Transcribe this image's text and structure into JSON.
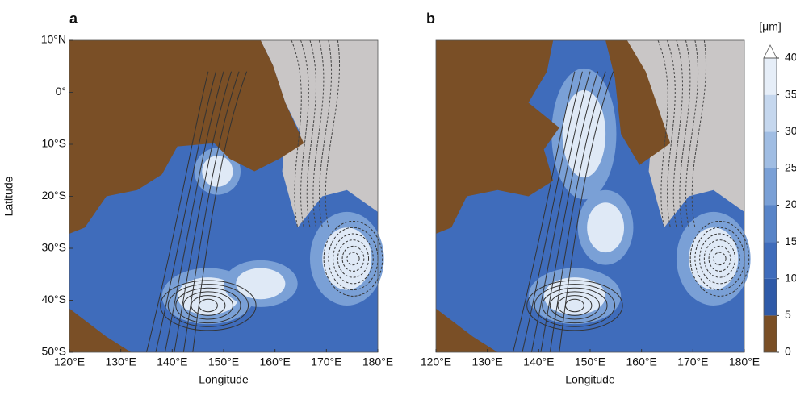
{
  "chart_data": [
    {
      "type": "contour",
      "title": "a",
      "xlabel": "Longitude",
      "ylabel": "Latitude",
      "xlim": [
        120,
        180
      ],
      "ylim": [
        -50,
        10
      ],
      "xticks": [
        {
          "value": 120,
          "label": "120°E"
        },
        {
          "value": 130,
          "label": "130°E"
        },
        {
          "value": 140,
          "label": "140°E"
        },
        {
          "value": 150,
          "label": "150°E"
        },
        {
          "value": 160,
          "label": "160°E"
        },
        {
          "value": 170,
          "label": "170°E"
        },
        {
          "value": 180,
          "label": "180°E"
        }
      ],
      "yticks": [
        {
          "value": 10,
          "label": "10°N"
        },
        {
          "value": 0,
          "label": "0°"
        },
        {
          "value": -10,
          "label": "10°S"
        },
        {
          "value": -20,
          "label": "20°S"
        },
        {
          "value": -30,
          "label": "30°S"
        },
        {
          "value": -40,
          "label": "40°S"
        },
        {
          "value": -50,
          "label": "50°S"
        }
      ]
    },
    {
      "type": "contour",
      "title": "b",
      "xlabel": "Longitude",
      "xlim": [
        120,
        180
      ],
      "ylim": [
        -50,
        10
      ],
      "xticks": [
        {
          "value": 120,
          "label": "120°E"
        },
        {
          "value": 130,
          "label": "130°E"
        },
        {
          "value": 140,
          "label": "140°E"
        },
        {
          "value": 150,
          "label": "150°E"
        },
        {
          "value": 160,
          "label": "160°E"
        },
        {
          "value": 170,
          "label": "170°E"
        },
        {
          "value": 180,
          "label": "180°E"
        }
      ]
    },
    {
      "type": "colorbar",
      "label": "[μm]",
      "ylim": [
        0,
        40
      ],
      "yticks": [
        0,
        5,
        10,
        15,
        20,
        25,
        30,
        35,
        40
      ],
      "colors": [
        "#7a4f26",
        "#2f5aa8",
        "#3f6cbb",
        "#5884c8",
        "#7aa0d6",
        "#a0bde3",
        "#c5d7ee",
        "#e6eef8"
      ]
    }
  ]
}
